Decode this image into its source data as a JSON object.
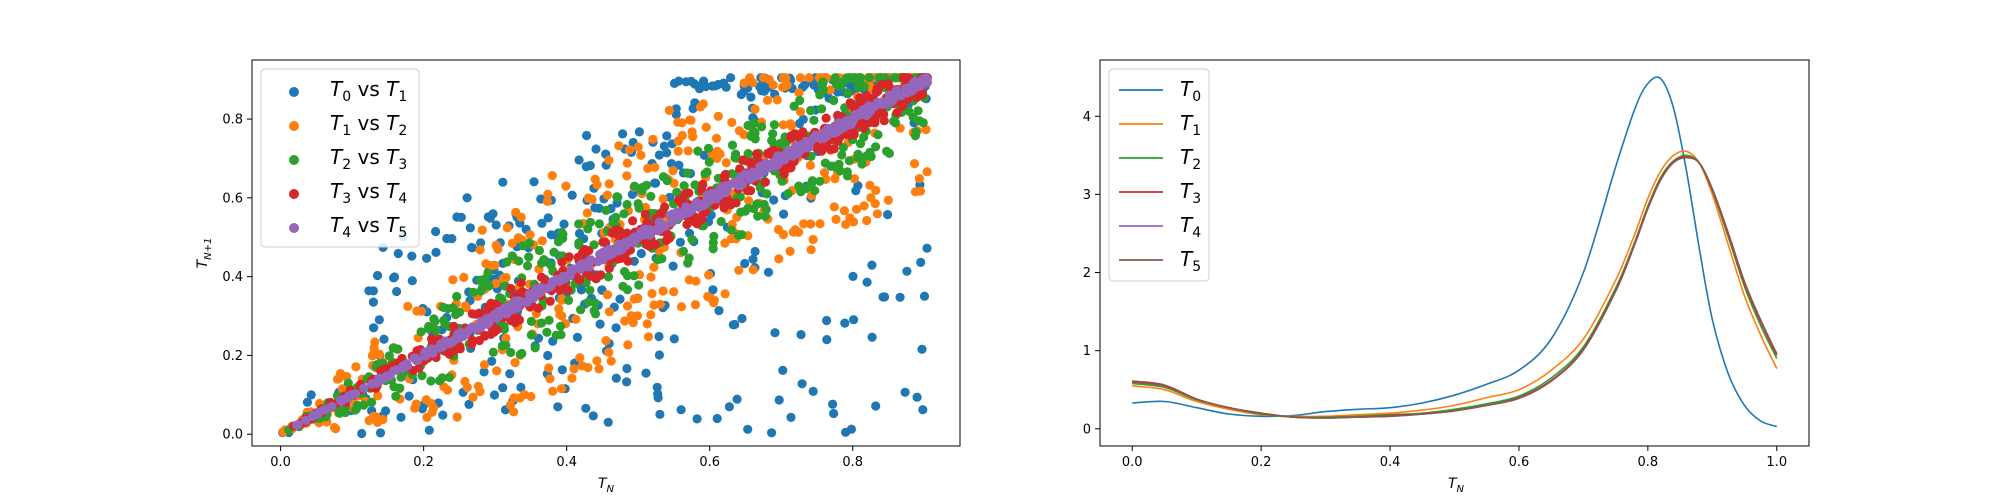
{
  "chart_data": [
    {
      "type": "scatter",
      "xlabel": "T_N",
      "ylabel": "T_{N+1}",
      "xlim": [
        -0.04,
        0.95
      ],
      "ylim": [
        -0.03,
        0.95
      ],
      "xticks": [
        0.0,
        0.2,
        0.4,
        0.6,
        0.8
      ],
      "yticks": [
        0.0,
        0.2,
        0.4,
        0.6,
        0.8
      ],
      "xtick_labels": [
        "0.0",
        "0.2",
        "0.4",
        "0.6",
        "0.8"
      ],
      "ytick_labels": [
        "0.0",
        "0.2",
        "0.4",
        "0.6",
        "0.8"
      ],
      "grid": false,
      "legend_position": "top-left",
      "series": [
        {
          "name": "T0 vs T1",
          "label": {
            "a": "T",
            "as": "0",
            "b": " vs T",
            "bs": "1"
          },
          "color": "#1f77b4",
          "spread": 0.9,
          "count": 420,
          "seed": 11
        },
        {
          "name": "T1 vs T2",
          "label": {
            "a": "T",
            "as": "1",
            "b": " vs T",
            "bs": "2"
          },
          "color": "#ff7f0e",
          "spread": 0.28,
          "count": 420,
          "seed": 23
        },
        {
          "name": "T2 vs T3",
          "label": {
            "a": "T",
            "as": "2",
            "b": " vs T",
            "bs": "3"
          },
          "color": "#2ca02c",
          "spread": 0.14,
          "count": 420,
          "seed": 37
        },
        {
          "name": "T3 vs T4",
          "label": {
            "a": "T",
            "as": "3",
            "b": " vs T",
            "bs": "4"
          },
          "color": "#d62728",
          "spread": 0.05,
          "count": 420,
          "seed": 41
        },
        {
          "name": "T4 vs T5",
          "label": {
            "a": "T",
            "as": "4",
            "b": " vs T",
            "bs": "5"
          },
          "color": "#9467bd",
          "spread": 0.012,
          "count": 420,
          "seed": 53
        }
      ]
    },
    {
      "type": "line",
      "xlabel": "T_N",
      "xlim": [
        -0.05,
        1.05
      ],
      "ylim": [
        -0.22,
        4.72
      ],
      "xticks": [
        0.0,
        0.2,
        0.4,
        0.6,
        0.8,
        1.0
      ],
      "yticks": [
        0,
        1,
        2,
        3,
        4
      ],
      "xtick_labels": [
        "0.0",
        "0.2",
        "0.4",
        "0.6",
        "0.8",
        "1.0"
      ],
      "ytick_labels": [
        "0",
        "1",
        "2",
        "3",
        "4"
      ],
      "grid": false,
      "legend_position": "top-left",
      "x": [
        0.0,
        0.05,
        0.1,
        0.15,
        0.2,
        0.25,
        0.3,
        0.35,
        0.4,
        0.45,
        0.5,
        0.55,
        0.6,
        0.65,
        0.7,
        0.75,
        0.78,
        0.8,
        0.82,
        0.84,
        0.86,
        0.88,
        0.9,
        0.925,
        0.95,
        0.975,
        1.0
      ],
      "series": [
        {
          "name": "T0",
          "label": {
            "a": "T",
            "as": "0"
          },
          "color": "#1f77b4",
          "values": [
            0.33,
            0.35,
            0.27,
            0.19,
            0.16,
            0.17,
            0.22,
            0.25,
            0.27,
            0.33,
            0.43,
            0.57,
            0.75,
            1.15,
            2.0,
            3.35,
            4.1,
            4.42,
            4.48,
            4.1,
            3.3,
            2.3,
            1.4,
            0.7,
            0.3,
            0.1,
            0.03
          ]
        },
        {
          "name": "T1",
          "label": {
            "a": "T",
            "as": "1"
          },
          "color": "#ff7f0e",
          "values": [
            0.55,
            0.5,
            0.35,
            0.25,
            0.18,
            0.16,
            0.16,
            0.18,
            0.2,
            0.24,
            0.3,
            0.4,
            0.5,
            0.75,
            1.15,
            1.9,
            2.5,
            2.95,
            3.3,
            3.5,
            3.55,
            3.4,
            3.0,
            2.35,
            1.7,
            1.2,
            0.77
          ]
        },
        {
          "name": "T2",
          "label": {
            "a": "T",
            "as": "2"
          },
          "color": "#2ca02c",
          "values": [
            0.58,
            0.53,
            0.37,
            0.27,
            0.19,
            0.15,
            0.15,
            0.16,
            0.18,
            0.2,
            0.25,
            0.32,
            0.42,
            0.65,
            1.05,
            1.8,
            2.4,
            2.85,
            3.22,
            3.43,
            3.5,
            3.4,
            3.05,
            2.45,
            1.82,
            1.32,
            0.9
          ]
        },
        {
          "name": "T3",
          "label": {
            "a": "T",
            "as": "3"
          },
          "color": "#d62728",
          "values": [
            0.6,
            0.55,
            0.38,
            0.27,
            0.2,
            0.15,
            0.14,
            0.15,
            0.17,
            0.19,
            0.23,
            0.3,
            0.4,
            0.62,
            1.02,
            1.77,
            2.38,
            2.83,
            3.2,
            3.42,
            3.48,
            3.4,
            3.06,
            2.48,
            1.86,
            1.37,
            0.94
          ]
        },
        {
          "name": "T4",
          "label": {
            "a": "T",
            "as": "4"
          },
          "color": "#9467bd",
          "values": [
            0.61,
            0.56,
            0.38,
            0.27,
            0.2,
            0.15,
            0.14,
            0.15,
            0.16,
            0.19,
            0.23,
            0.3,
            0.39,
            0.61,
            1.01,
            1.76,
            2.37,
            2.82,
            3.19,
            3.41,
            3.47,
            3.4,
            3.07,
            2.5,
            1.88,
            1.39,
            0.96
          ]
        },
        {
          "name": "T5",
          "label": {
            "a": "T",
            "as": "5"
          },
          "color": "#8c564b",
          "values": [
            0.61,
            0.56,
            0.38,
            0.27,
            0.2,
            0.15,
            0.14,
            0.15,
            0.16,
            0.19,
            0.23,
            0.3,
            0.39,
            0.61,
            1.01,
            1.76,
            2.37,
            2.82,
            3.19,
            3.41,
            3.47,
            3.4,
            3.07,
            2.5,
            1.88,
            1.39,
            0.96
          ]
        }
      ]
    }
  ]
}
